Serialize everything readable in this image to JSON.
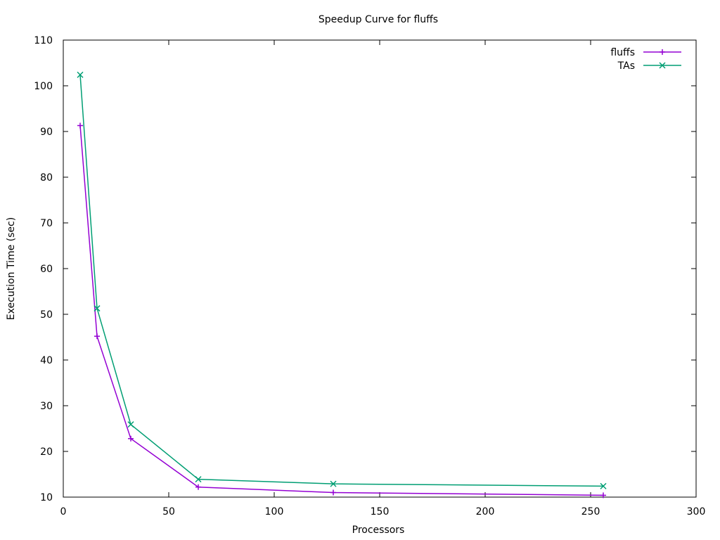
{
  "chart_data": {
    "type": "line",
    "title": "Speedup Curve for fluffs",
    "xlabel": "Processors",
    "ylabel": "Execution Time (sec)",
    "xlim": [
      0,
      300
    ],
    "ylim": [
      10,
      110
    ],
    "xticks": [
      0,
      50,
      100,
      150,
      200,
      250,
      300
    ],
    "yticks": [
      10,
      20,
      30,
      40,
      50,
      60,
      70,
      80,
      90,
      100,
      110
    ],
    "grid": false,
    "legend_position": "top-right",
    "x": [
      8,
      16,
      32,
      64,
      128,
      256
    ],
    "series": [
      {
        "name": "fluffs",
        "color": "#9400d3",
        "marker": "plus",
        "values": [
          91.3,
          45.2,
          22.8,
          12.2,
          11.0,
          10.4
        ]
      },
      {
        "name": "TAs",
        "color": "#009e73",
        "marker": "cross",
        "values": [
          102.4,
          51.3,
          25.9,
          13.9,
          12.9,
          12.4
        ]
      }
    ]
  }
}
